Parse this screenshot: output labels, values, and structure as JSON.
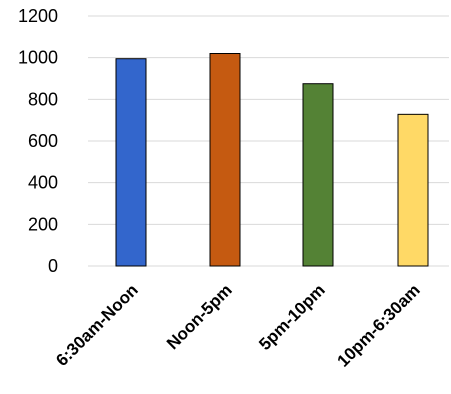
{
  "chart_data": {
    "type": "bar",
    "title": "",
    "xlabel": "",
    "ylabel": "",
    "categories": [
      "6:30am-Noon",
      "Noon-5pm",
      "5pm-10pm",
      "10pm-6:30am"
    ],
    "values": [
      995,
      1020,
      875,
      728
    ],
    "colors": [
      "#3366cc",
      "#c55a11",
      "#548235",
      "#ffd966"
    ],
    "ylim": [
      0,
      1200
    ],
    "yticks": [
      "0",
      "200",
      "400",
      "600",
      "800",
      "1000",
      "1200"
    ],
    "grid": true,
    "legend": "none"
  }
}
